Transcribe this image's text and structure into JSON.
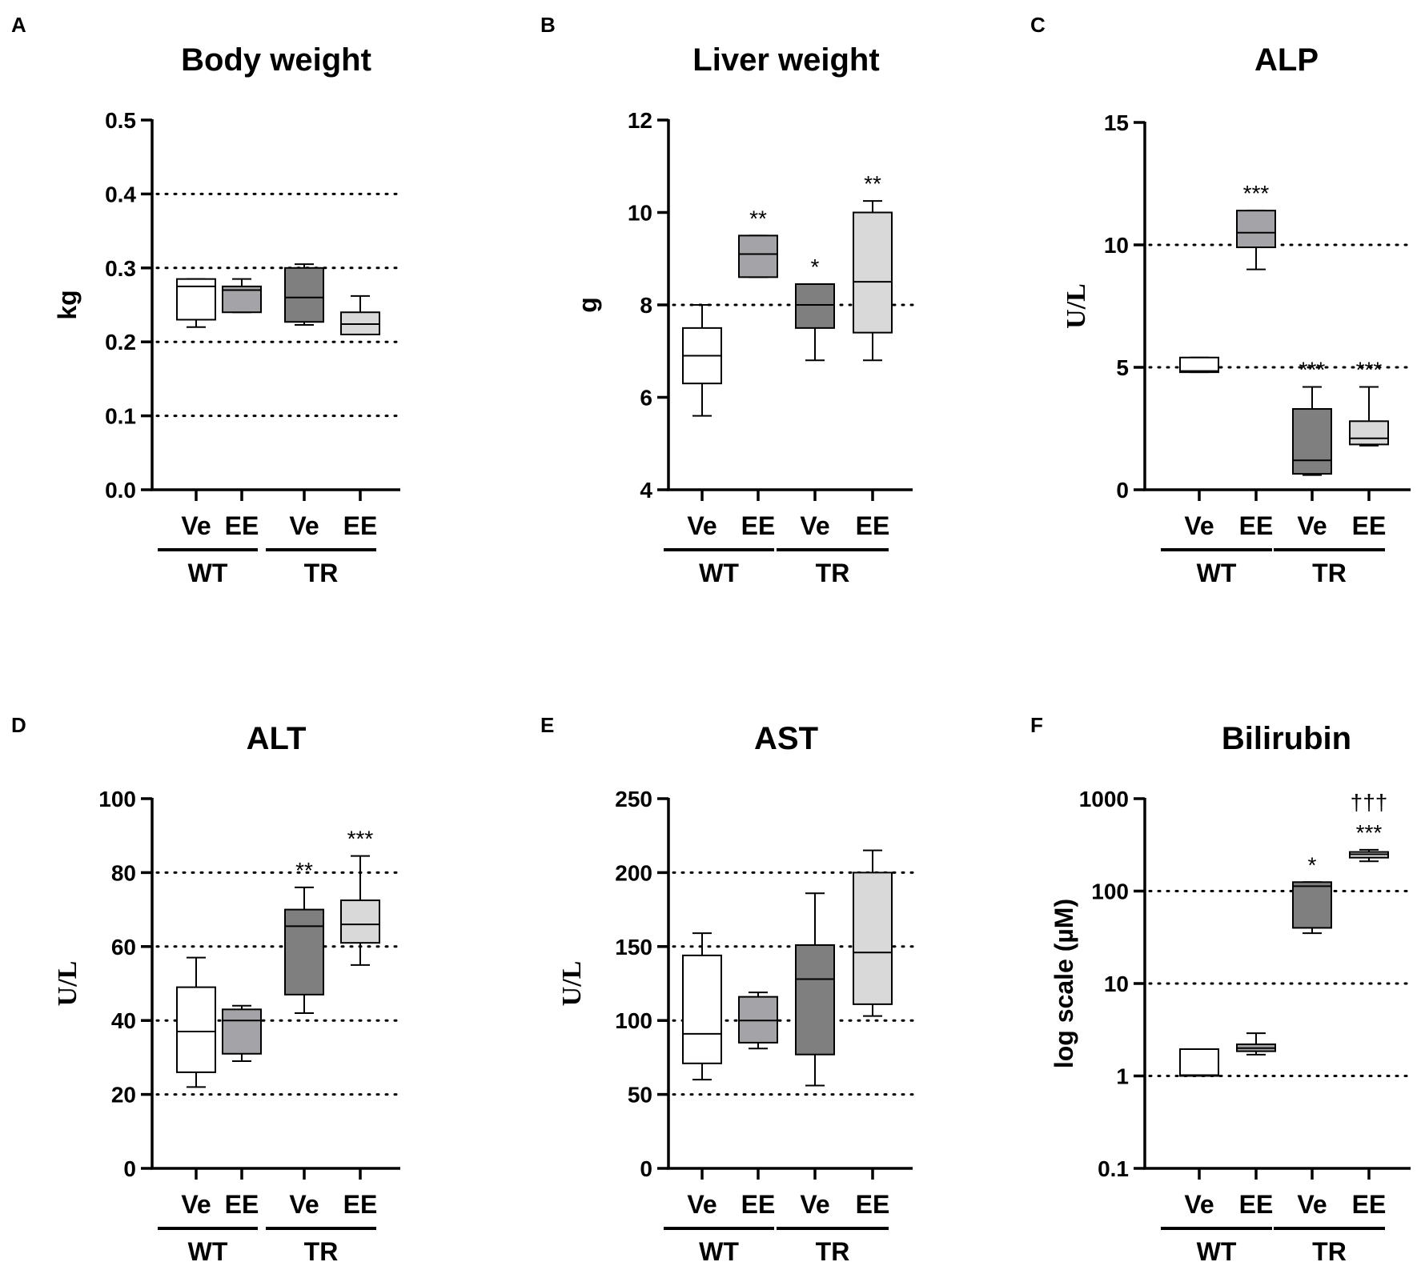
{
  "colors": {
    "Ve_WT": "#ffffff",
    "EE_WT": "#a3a3a8",
    "Ve_TR": "#7f7f7f",
    "EE_TR": "#d9d9d9",
    "axis": "#000000"
  },
  "chart_data": [
    {
      "panel": "A",
      "type": "box",
      "title": "Body weight",
      "ylabel": "kg",
      "ylabel_font": "sans",
      "scale": "linear",
      "ylim": [
        0,
        0.5
      ],
      "yticks": [
        0,
        0.1,
        0.2,
        0.3,
        0.4,
        0.5
      ],
      "ytick_labels": [
        "0.0",
        "0.1",
        "0.2",
        "0.3",
        "0.4",
        "0.5"
      ],
      "reference_lines": [
        0.1,
        0.2,
        0.3,
        0.4
      ],
      "categories": [
        "Ve",
        "EE",
        "Ve",
        "EE"
      ],
      "groups": [
        {
          "label": "WT"
        },
        {
          "label": "TR"
        }
      ],
      "boxes": [
        {
          "category": "Ve",
          "group": "WT",
          "min": 0.22,
          "q1": 0.23,
          "median": 0.275,
          "q3": 0.285,
          "max": 0.285,
          "sig": ""
        },
        {
          "category": "EE",
          "group": "WT",
          "min": 0.24,
          "q1": 0.24,
          "median": 0.27,
          "q3": 0.275,
          "max": 0.285,
          "sig": ""
        },
        {
          "category": "Ve",
          "group": "TR",
          "min": 0.223,
          "q1": 0.227,
          "median": 0.26,
          "q3": 0.3,
          "max": 0.305,
          "sig": ""
        },
        {
          "category": "EE",
          "group": "TR",
          "min": 0.21,
          "q1": 0.21,
          "median": 0.224,
          "q3": 0.24,
          "max": 0.262,
          "sig": ""
        }
      ]
    },
    {
      "panel": "B",
      "type": "box",
      "title": "Liver weight",
      "ylabel": "g",
      "ylabel_font": "sans",
      "scale": "linear",
      "ylim": [
        4,
        12
      ],
      "yticks": [
        4,
        6,
        8,
        10,
        12
      ],
      "ytick_labels": [
        "4",
        "6",
        "8",
        "10",
        "12"
      ],
      "reference_lines": [
        8
      ],
      "categories": [
        "Ve",
        "EE",
        "Ve",
        "EE"
      ],
      "groups": [
        {
          "label": "WT"
        },
        {
          "label": "TR"
        }
      ],
      "boxes": [
        {
          "category": "Ve",
          "group": "WT",
          "min": 5.6,
          "q1": 6.3,
          "median": 6.9,
          "q3": 7.5,
          "max": 8.0,
          "sig": ""
        },
        {
          "category": "EE",
          "group": "WT",
          "min": 8.6,
          "q1": 8.6,
          "median": 9.1,
          "q3": 9.5,
          "max": 9.5,
          "sig": "**"
        },
        {
          "category": "Ve",
          "group": "TR",
          "min": 6.8,
          "q1": 7.5,
          "median": 8.0,
          "q3": 8.45,
          "max": 8.45,
          "sig": "*"
        },
        {
          "category": "EE",
          "group": "TR",
          "min": 6.8,
          "q1": 7.4,
          "median": 8.5,
          "q3": 10.0,
          "max": 10.25,
          "sig": "**"
        }
      ]
    },
    {
      "panel": "C",
      "type": "box",
      "title": "ALP",
      "ylabel": "U/L",
      "ylabel_font": "serif",
      "scale": "linear",
      "ylim": [
        0,
        15
      ],
      "yticks": [
        0,
        5,
        10,
        15
      ],
      "ytick_labels": [
        "0",
        "5",
        "10",
        "15"
      ],
      "reference_lines": [
        5,
        10
      ],
      "categories": [
        "Ve",
        "EE",
        "Ve",
        "EE"
      ],
      "groups": [
        {
          "label": "WT"
        },
        {
          "label": "TR"
        }
      ],
      "boxes": [
        {
          "category": "Ve",
          "group": "WT",
          "min": 4.8,
          "q1": 4.8,
          "median": 4.85,
          "q3": 5.4,
          "max": 5.4,
          "sig": ""
        },
        {
          "category": "EE",
          "group": "WT",
          "min": 9.0,
          "q1": 9.9,
          "median": 10.5,
          "q3": 11.4,
          "max": 11.4,
          "sig": "***"
        },
        {
          "category": "Ve",
          "group": "TR",
          "min": 0.6,
          "q1": 0.65,
          "median": 1.2,
          "q3": 3.3,
          "max": 4.2,
          "sig": "***"
        },
        {
          "category": "EE",
          "group": "TR",
          "min": 1.8,
          "q1": 1.85,
          "median": 2.1,
          "q3": 2.8,
          "max": 4.2,
          "sig": "***"
        }
      ]
    },
    {
      "panel": "D",
      "type": "box",
      "title": "ALT",
      "ylabel": "U/L",
      "ylabel_font": "serif",
      "scale": "linear",
      "ylim": [
        0,
        100
      ],
      "yticks": [
        0,
        20,
        40,
        60,
        80,
        100
      ],
      "ytick_labels": [
        "0",
        "20",
        "40",
        "60",
        "80",
        "100"
      ],
      "reference_lines": [
        20,
        40,
        60,
        80
      ],
      "categories": [
        "Ve",
        "EE",
        "Ve",
        "EE"
      ],
      "groups": [
        {
          "label": "WT"
        },
        {
          "label": "TR"
        }
      ],
      "boxes": [
        {
          "category": "Ve",
          "group": "WT",
          "min": 22,
          "q1": 26,
          "median": 37,
          "q3": 49,
          "max": 57,
          "sig": ""
        },
        {
          "category": "EE",
          "group": "WT",
          "min": 29,
          "q1": 31,
          "median": 40,
          "q3": 43,
          "max": 44,
          "sig": ""
        },
        {
          "category": "Ve",
          "group": "TR",
          "min": 42,
          "q1": 47,
          "median": 65.5,
          "q3": 70,
          "max": 76,
          "sig": "**"
        },
        {
          "category": "EE",
          "group": "TR",
          "min": 55,
          "q1": 61,
          "median": 66,
          "q3": 72.5,
          "max": 84.5,
          "sig": "***"
        }
      ]
    },
    {
      "panel": "E",
      "type": "box",
      "title": "AST",
      "ylabel": "U/L",
      "ylabel_font": "serif",
      "scale": "linear",
      "ylim": [
        0,
        250
      ],
      "yticks": [
        0,
        50,
        100,
        150,
        200,
        250
      ],
      "ytick_labels": [
        "0",
        "50",
        "100",
        "150",
        "200",
        "250"
      ],
      "reference_lines": [
        50,
        100,
        150,
        200
      ],
      "categories": [
        "Ve",
        "EE",
        "Ve",
        "EE"
      ],
      "groups": [
        {
          "label": "WT"
        },
        {
          "label": "TR"
        }
      ],
      "boxes": [
        {
          "category": "Ve",
          "group": "WT",
          "min": 60,
          "q1": 71,
          "median": 91,
          "q3": 144,
          "max": 159,
          "sig": ""
        },
        {
          "category": "EE",
          "group": "WT",
          "min": 81,
          "q1": 85,
          "median": 100,
          "q3": 116,
          "max": 119,
          "sig": ""
        },
        {
          "category": "Ve",
          "group": "TR",
          "min": 56,
          "q1": 77,
          "median": 128,
          "q3": 151,
          "max": 186,
          "sig": ""
        },
        {
          "category": "EE",
          "group": "TR",
          "min": 103,
          "q1": 111,
          "median": 146,
          "q3": 200,
          "max": 215,
          "sig": ""
        }
      ]
    },
    {
      "panel": "F",
      "type": "box",
      "title": "Bilirubin",
      "ylabel": "log scale (µM)",
      "ylabel_font": "sans",
      "scale": "log",
      "ylim": [
        0.1,
        1000
      ],
      "yticks": [
        0.1,
        1,
        10,
        100,
        1000
      ],
      "ytick_labels": [
        "0.1",
        "1",
        "10",
        "100",
        "1000"
      ],
      "reference_lines": [
        1,
        10,
        100
      ],
      "categories": [
        "Ve",
        "EE",
        "Ve",
        "EE"
      ],
      "groups": [
        {
          "label": "WT"
        },
        {
          "label": "TR"
        }
      ],
      "boxes": [
        {
          "category": "Ve",
          "group": "WT",
          "min": 1.0,
          "q1": 1.0,
          "median": 1.02,
          "q3": 1.95,
          "max": 1.95,
          "sig": ""
        },
        {
          "category": "EE",
          "group": "WT",
          "min": 1.7,
          "q1": 1.85,
          "median": 2.0,
          "q3": 2.2,
          "max": 2.9,
          "sig": ""
        },
        {
          "category": "Ve",
          "group": "TR",
          "min": 35,
          "q1": 40,
          "median": 113,
          "q3": 125,
          "max": 125,
          "sig": "*"
        },
        {
          "category": "EE",
          "group": "TR",
          "min": 210,
          "q1": 230,
          "median": 250,
          "q3": 265,
          "max": 280,
          "sig": "***",
          "sig2": "†††"
        }
      ]
    }
  ]
}
